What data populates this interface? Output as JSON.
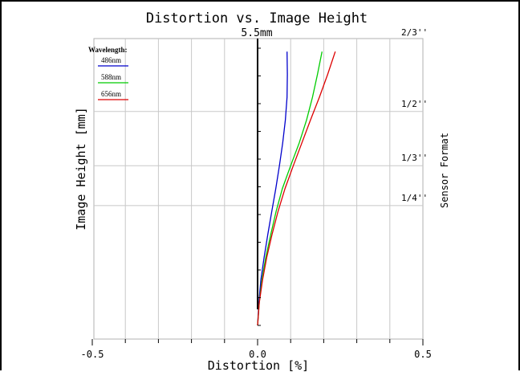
{
  "chart_data": {
    "type": "line",
    "title": "Distortion vs. Image Height",
    "subtitle": "5.5mm",
    "xlabel": "Distortion [%]",
    "ylabel": "Image Height [mm]",
    "right_label": "Sensor Format",
    "xlim": [
      -0.5,
      0.5
    ],
    "ylim": [
      0,
      1
    ],
    "grid": true,
    "legend_placement": "top-left",
    "legend_title": "Wavelength:",
    "x_ticks": [
      {
        "value": -0.5,
        "label": "-0.5"
      },
      {
        "value": 0.0,
        "label": "0.0"
      },
      {
        "value": 0.5,
        "label": "0.5"
      }
    ],
    "sensor_formats": [
      {
        "label": "2/3''",
        "y": 1.0
      },
      {
        "label": "1/2''",
        "y": 0.75
      },
      {
        "label": "1/3''",
        "y": 0.56
      },
      {
        "label": "1/4''",
        "y": 0.42
      }
    ],
    "series": [
      {
        "name": "486nm",
        "color": "#0000cc",
        "x": [
          0.0,
          0.004,
          0.01,
          0.02,
          0.031,
          0.043,
          0.055,
          0.066,
          0.076,
          0.084,
          0.089,
          0.09,
          0.089
        ],
        "y": [
          0.0,
          0.08,
          0.16,
          0.24,
          0.32,
          0.4,
          0.48,
          0.56,
          0.64,
          0.72,
          0.8,
          0.88,
          0.96
        ]
      },
      {
        "name": "588nm",
        "color": "#00cc00",
        "x": [
          0.0,
          0.005,
          0.013,
          0.025,
          0.04,
          0.056,
          0.075,
          0.1,
          0.126,
          0.148,
          0.166,
          0.181,
          0.195
        ],
        "y": [
          0.0,
          0.08,
          0.16,
          0.24,
          0.32,
          0.4,
          0.48,
          0.56,
          0.64,
          0.72,
          0.8,
          0.88,
          0.96
        ]
      },
      {
        "name": "656nm",
        "color": "#dd0000",
        "x": [
          0.0,
          0.005,
          0.015,
          0.028,
          0.044,
          0.062,
          0.083,
          0.108,
          0.134,
          0.16,
          0.187,
          0.212,
          0.235
        ],
        "y": [
          0.0,
          0.08,
          0.16,
          0.24,
          0.32,
          0.4,
          0.48,
          0.56,
          0.64,
          0.72,
          0.8,
          0.88,
          0.96
        ]
      }
    ]
  }
}
